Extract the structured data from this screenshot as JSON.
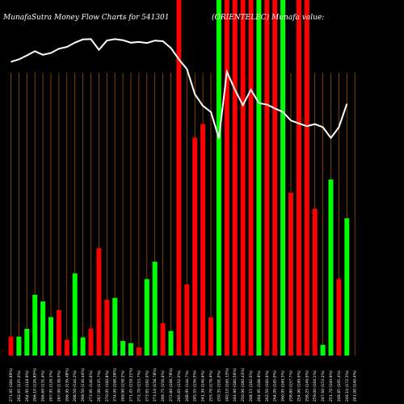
{
  "chart_data": {
    "type": "bar",
    "title": "MunafaSutra  Money Flow  Charts for 541301",
    "subtitle": "(ORIENTELEC)  Munafa value:",
    "background": "#000000",
    "colors": {
      "up": "#00ff00",
      "down": "#ff0000",
      "grid": "#b35900",
      "line": "#ffffff"
    },
    "ylim": [
      0,
      100
    ],
    "grid": true,
    "categories": [
      "271.95 (184.89%)",
      "262.65 (125.0%)",
      "264.95 (118.9%)",
      "266.10 (126.85%)",
      "266.60 (131.4%)",
      "267.95 (126.3%)",
      "267.00 (138.0%)",
      "266.95 (139.48%)",
      "268.50 (144.2%)",
      "269.50 (136.44%)",
      "273.95 (146.6%)",
      "267.00 (135.7%)",
      "270.05 (160.8%)",
      "274.00 (168.28%)",
      "269.90 (158.2%)",
      "271.45 (159.21%)",
      "272.70 (153.7%)",
      "273.65 (162.0%)",
      "273.10 (158.78%)",
      "269.75 (156.6%)",
      "272.80 (168.78%)",
      "265.65 (152.0%)",
      "268.95 (144.7%)",
      "245.55 (156.5%)",
      "241.30 (146.6%)",
      "255.70 (178.4%)",
      "250.35 (191.0%)",
      "240.10 (160.33%)",
      "244.90 (180.56%)",
      "250.90 (180.43%)",
      "268.15 (162.0%)",
      "264.95 (168.9%)",
      "262.50 (160.6%)",
      "264.00 (165.0%)",
      "260.95 (160.3%)",
      "258.80 (157.7%)",
      "254.90 (190.0%)",
      "258.25 (149.0%)",
      "259.00 (164.1%)",
      "247.60 (153.2%)",
      "251.70 (160.9%)",
      "248.85 (165.4%)",
      "246.10 (172.3%)",
      "241.00 (140.4%)"
    ],
    "series": [
      {
        "type": "bar",
        "values": [
          5.3,
          5.3,
          7.5,
          17.1,
          15.2,
          10.8,
          12.8,
          4.4,
          23.1,
          5.1,
          7.6,
          30.2,
          15.7,
          16.2,
          4.1,
          3.5,
          2.3,
          21.5,
          26.4,
          9.1,
          6.9,
          100,
          20.0,
          61.3,
          65.1,
          10.7,
          100,
          100,
          100,
          100,
          100,
          100,
          100,
          100,
          100,
          45.8,
          100,
          100,
          41.3,
          3.0,
          49.5,
          21.5,
          38.6,
          0
        ],
        "directions": [
          "down",
          "up",
          "up",
          "up",
          "up",
          "up",
          "down",
          "down",
          "up",
          "up",
          "down",
          "down",
          "down",
          "up",
          "up",
          "up",
          "down",
          "up",
          "up",
          "down",
          "up",
          "down",
          "down",
          "down",
          "down",
          "down",
          "up",
          "down",
          "down",
          "down",
          "down",
          "up",
          "down",
          "down",
          "up",
          "down",
          "down",
          "down",
          "down",
          "up",
          "up",
          "down",
          "up",
          "up"
        ]
      },
      {
        "type": "line",
        "values": [
          82.6,
          83.3,
          84.4,
          85.6,
          84.6,
          85.1,
          86.3,
          86.8,
          88.0,
          88.9,
          89.0,
          86.0,
          88.6,
          89.0,
          88.7,
          88.0,
          88.2,
          87.9,
          88.6,
          88.4,
          86.5,
          83.3,
          80.6,
          73.5,
          70.2,
          68.5,
          61.1,
          79.8,
          74.8,
          70.4,
          74.8,
          71.0,
          70.6,
          69.5,
          68.5,
          66.1,
          65.3,
          64.5,
          65.1,
          64.2,
          61.2,
          64.2,
          70.8,
          0
        ]
      }
    ]
  }
}
